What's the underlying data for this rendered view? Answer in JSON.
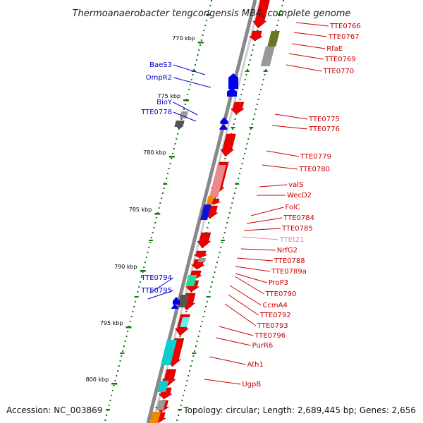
{
  "title": "Thermoanaerobacter tengcongensis MB4, complete genome",
  "footer": {
    "accession": "Accession: NC_003869",
    "summary": "Topology: circular; Length: 2,689,445 bp; Genes: 2,656"
  },
  "ticks": [
    {
      "label": "770 kbp"
    },
    {
      "label": "775 kbp"
    },
    {
      "label": "780 kbp"
    },
    {
      "label": "785 kbp"
    },
    {
      "label": "790 kbp"
    },
    {
      "label": "795 kbp"
    },
    {
      "label": "800 kbp"
    }
  ],
  "labels_left": [
    {
      "text": "BaeS3",
      "color": "#0000cc"
    },
    {
      "text": "OmpR2",
      "color": "#0000cc"
    },
    {
      "text": "BioY",
      "color": "#0000cc"
    },
    {
      "text": "TTE0778",
      "color": "#0000cc"
    },
    {
      "text": "TTE0794",
      "color": "#0000cc"
    },
    {
      "text": "TTE0795",
      "color": "#0000cc"
    }
  ],
  "labels_right": [
    {
      "text": "TTE0766",
      "color": "#cc0000"
    },
    {
      "text": "TTE0767",
      "color": "#cc0000"
    },
    {
      "text": "RfaE",
      "color": "#cc0000"
    },
    {
      "text": "TTE0769",
      "color": "#cc0000"
    },
    {
      "text": "TTE0770",
      "color": "#cc0000"
    },
    {
      "text": "TTE0775",
      "color": "#cc0000"
    },
    {
      "text": "TTE0776",
      "color": "#cc0000"
    },
    {
      "text": "TTE0779",
      "color": "#cc0000"
    },
    {
      "text": "TTE0780",
      "color": "#cc0000"
    },
    {
      "text": "valS",
      "color": "#cc0000"
    },
    {
      "text": "WecD2",
      "color": "#cc0000"
    },
    {
      "text": "FolC",
      "color": "#cc0000"
    },
    {
      "text": "TTE0784",
      "color": "#cc0000"
    },
    {
      "text": "TTE0785",
      "color": "#cc0000"
    },
    {
      "text": "TTEt21",
      "color": "#ee88aa"
    },
    {
      "text": "NrfG2",
      "color": "#cc0000"
    },
    {
      "text": "TTE0788",
      "color": "#cc0000"
    },
    {
      "text": "TTE0789a",
      "color": "#cc0000"
    },
    {
      "text": "ProP3",
      "color": "#cc0000"
    },
    {
      "text": "TTE0790",
      "color": "#cc0000"
    },
    {
      "text": "CcmA4",
      "color": "#cc0000"
    },
    {
      "text": "TTE0792",
      "color": "#cc0000"
    },
    {
      "text": "TTE0793",
      "color": "#cc0000"
    },
    {
      "text": "TTE0796",
      "color": "#cc0000"
    },
    {
      "text": "PurR6",
      "color": "#cc0000"
    },
    {
      "text": "Ath1",
      "color": "#cc0000"
    },
    {
      "text": "UgpB",
      "color": "#cc0000"
    }
  ],
  "colors": {
    "forward_gene": "#ee0000",
    "reverse_gene": "#0000ee",
    "backbone": "#888888",
    "tick": "#117711",
    "cog_olive": "#667722",
    "cog_gray": "#999999",
    "cog_pink": "#ee8888",
    "cog_orange": "#ee8800",
    "cog_blue": "#1111dd",
    "cog_green": "#22dd99",
    "cog_dark": "#555555",
    "cog_cyan": "#11cccc",
    "cog_lightcyan": "#66eeee"
  }
}
